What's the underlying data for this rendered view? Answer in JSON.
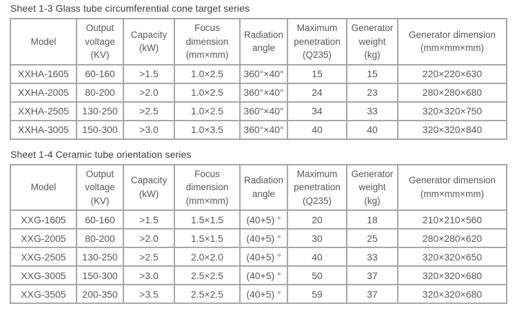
{
  "page": {
    "background": "#ffffff",
    "border_color": "#a6a6a6",
    "text_color": "#57585c",
    "title_color": "#3d3d3f"
  },
  "columns": [
    {
      "label": "Model"
    },
    {
      "label": "Output\nvoltage\n(KV)"
    },
    {
      "label": "Capacity\n(kW)"
    },
    {
      "label": "Focus\ndimension\n(mm×mm)"
    },
    {
      "label": "Radiation\nangle"
    },
    {
      "label": "Maximum\npenetration\n(Q235)"
    },
    {
      "label": "Generator\nweight\n(kg)"
    },
    {
      "label": "Generator dimension\n(mm×mm×mm)"
    }
  ],
  "sheet13": {
    "title": "Sheet 1-3 Glass tube circumferential cone target series",
    "rows": [
      [
        "XXHA-1605",
        "60-160",
        ">1.5",
        "1.0×2.5",
        "360°×40°",
        "15",
        "15",
        "220×220×630"
      ],
      [
        "XXHA-2005",
        "80-200",
        ">2.0",
        "1.0×2.5",
        "360°×40°",
        "24",
        "23",
        "280×280×680"
      ],
      [
        "XXHA-2505",
        "130-250",
        ">2.5",
        "1.0×2.5",
        "360°×40°",
        "34",
        "33",
        "320×320×750"
      ],
      [
        "XXHA-3005",
        "150-300",
        ">3.0",
        "1.0×3.5",
        "360°×40°",
        "40",
        "40",
        "320×320×840"
      ]
    ]
  },
  "sheet14": {
    "title": "Sheet 1-4 Ceramic tube orientation series",
    "rows": [
      [
        "XXG-1605",
        "60-160",
        ">1.5",
        "1.5×1.5",
        "(40+5) °",
        "20",
        "18",
        "210×210×560"
      ],
      [
        "XXG-2005",
        "80-200",
        ">2.0",
        "1.5×1.5",
        "(40+5) °",
        "30",
        "25",
        "280×280×620"
      ],
      [
        "XXG-2505",
        "130-250",
        ">2.5",
        "2.0×2.0",
        "(40+5) °",
        "40",
        "33",
        "320×320×650"
      ],
      [
        "XXG-3005",
        "150-300",
        ">3.0",
        "2.5×2.5",
        "(40+5) °",
        "50",
        "37",
        "320×320×680"
      ],
      [
        "XXG-3505",
        "200-350",
        ">3.5",
        "2.5×2.5",
        "(40+5) °",
        "59",
        "37",
        "320×320×680"
      ]
    ]
  }
}
